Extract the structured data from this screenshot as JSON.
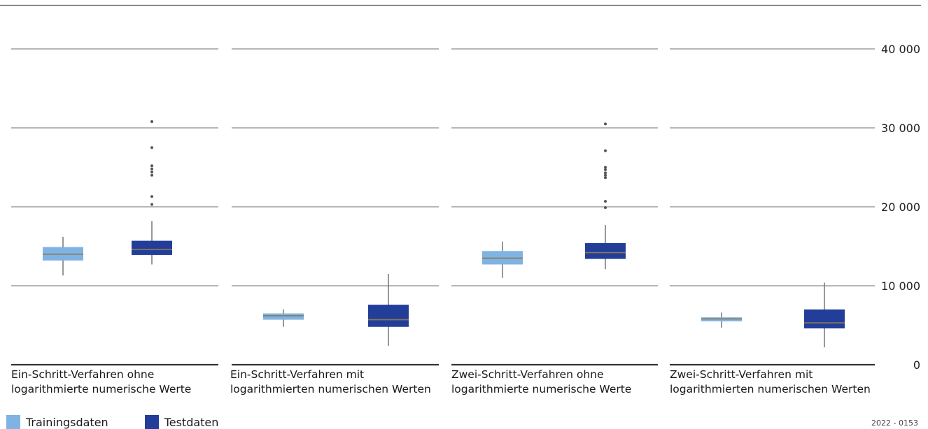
{
  "chart_data": {
    "type": "boxplot",
    "y_ticks": [
      "0",
      "10 000",
      "20 000",
      "30 000",
      "40 000"
    ],
    "y_tick_values": [
      0,
      10000,
      20000,
      30000,
      40000
    ],
    "ylim": [
      0,
      40000
    ],
    "grid": true,
    "legend": "bottom-left",
    "series": [
      {
        "name": "Trainingsdaten",
        "color": "#7fb3e3"
      },
      {
        "name": "Testdaten",
        "color": "#233e99"
      }
    ],
    "median_color": "#8a7a55",
    "panels": [
      {
        "label_line1": "Ein-Schritt-Verfahren ohne",
        "label_line2": "logarithmierte numerische Werte",
        "boxes": [
          {
            "series": "Trainingsdaten",
            "whisker_low": 11300,
            "q1": 13200,
            "median": 14000,
            "q3": 14900,
            "whisker_high": 16200,
            "outliers": []
          },
          {
            "series": "Testdaten",
            "whisker_low": 12700,
            "q1": 13900,
            "median": 14600,
            "q3": 15700,
            "whisker_high": 18200,
            "outliers": [
              20300,
              21300,
              24000,
              24400,
              24800,
              25200,
              27500,
              30800
            ]
          }
        ]
      },
      {
        "label_line1": "Ein-Schritt-Verfahren mit",
        "label_line2": "logarithmierten numerischen Werten",
        "boxes": [
          {
            "series": "Trainingsdaten",
            "whisker_low": 4800,
            "q1": 5700,
            "median": 6200,
            "q3": 6500,
            "whisker_high": 7000,
            "outliers": []
          },
          {
            "series": "Testdaten",
            "whisker_low": 2400,
            "q1": 4800,
            "median": 5700,
            "q3": 7600,
            "whisker_high": 11500,
            "outliers": []
          }
        ]
      },
      {
        "label_line1": "Zwei-Schritt-Verfahren ohne",
        "label_line2": "logarithmierte numerische Werte",
        "boxes": [
          {
            "series": "Trainingsdaten",
            "whisker_low": 11000,
            "q1": 12700,
            "median": 13500,
            "q3": 14400,
            "whisker_high": 15600,
            "outliers": []
          },
          {
            "series": "Testdaten",
            "whisker_low": 12100,
            "q1": 13400,
            "median": 14200,
            "q3": 15400,
            "whisker_high": 17700,
            "outliers": [
              19900,
              20700,
              23700,
              24000,
              24300,
              24700,
              25000,
              27100,
              30500
            ]
          }
        ]
      },
      {
        "label_line1": "Zwei-Schritt-Verfahren mit",
        "label_line2": "logarithmierten numerischen Werten",
        "boxes": [
          {
            "series": "Trainingsdaten",
            "whisker_low": 4700,
            "q1": 5500,
            "median": 5800,
            "q3": 6000,
            "whisker_high": 6600,
            "outliers": []
          },
          {
            "series": "Testdaten",
            "whisker_low": 2200,
            "q1": 4600,
            "median": 5300,
            "q3": 7000,
            "whisker_high": 10400,
            "outliers": []
          }
        ]
      }
    ]
  },
  "footnote": "2022 - 0153"
}
